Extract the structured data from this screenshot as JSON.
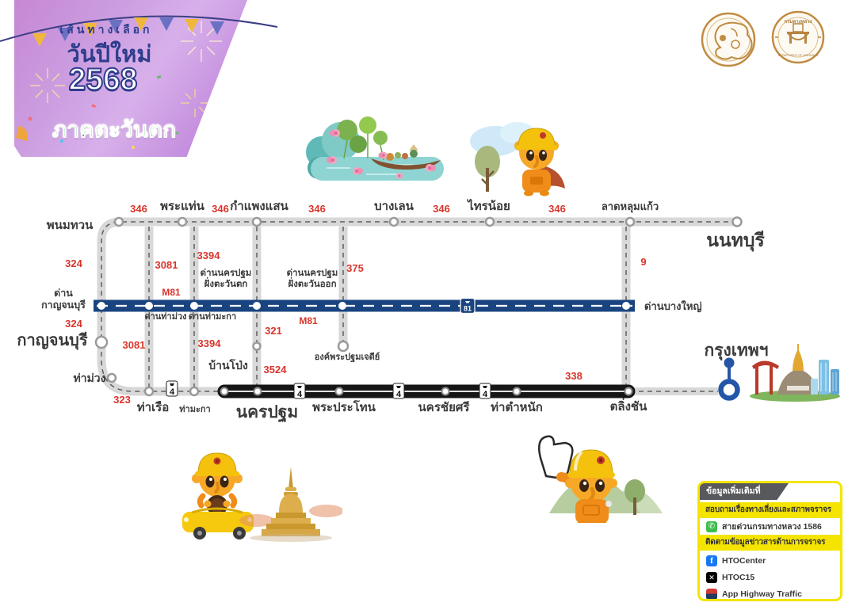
{
  "banner": {
    "line1": "เส้นทางเลือก",
    "line2": "วันปีใหม่",
    "year": "2568",
    "region": "ภาคตะวันตก"
  },
  "seals": {
    "right_top": "กรมทางหลวง",
    "right_bottom": "DEPARTMENT OF HIGHWAYS"
  },
  "map": {
    "towns": {
      "phanom_thuan": "พนมทวน",
      "phra_thaen": "พระแท่น",
      "kamphaeng_saen": "กำแพงแสน",
      "bang_len": "บางเลน",
      "sai_noi": "ไทรน้อย",
      "lat_lum_kaeo": "ลาดหลุมแก้ว",
      "nonthaburi": "นนทบุรี",
      "kanchanaburi": "กาญจนบุรี",
      "tha_muang": "ท่าม่วง",
      "tha_ruea": "ท่าเรือ",
      "tha_maka": "ท่ามะกา",
      "ban_pong": "บ้านโป่ง",
      "phra_pathom_chedi": "องค์พระปฐมเจดีย์",
      "nakhon_pathom": "นครปฐม",
      "phra_prathon": "พระประโทน",
      "nakhon_chai_si": "นครชัยศรี",
      "tha_tamnak": "ท่าตำหนัก",
      "taling_chan": "ตลิ่งชัน",
      "bangkok": "กรุงเทพฯ"
    },
    "tolls": {
      "kan_line1": "ด่าน",
      "kan_line2": "กาญจนบุรี",
      "tha_muang": "ด่านท่าม่วง",
      "tha_maka": "ด่านท่ามะกา",
      "np_line1": "ด่านนครปฐม",
      "np_west_line2": "ฝั่งตะวันตก",
      "np_east_line2": "ฝั่งตะวันออก",
      "bang_yai": "ด่านบางใหญ่"
    },
    "routes": {
      "r346": "346",
      "r324": "324",
      "r3081": "3081",
      "r3394": "3394",
      "m81": "M81",
      "r375": "375",
      "r9": "9",
      "r321": "321",
      "r3524": "3524",
      "r323": "323",
      "r338": "338",
      "shield4": "4",
      "shield81": "81"
    }
  },
  "info_box": {
    "header": "ข้อมูลเพิ่มเติมที่",
    "ask_title": "สอบถามเรื่องทางเลี่ยงและสภาพจราจร",
    "hotline": "สายด่วนกรมทางหลวง 1586",
    "follow_title": "ติดตามข้อมูลข่าวสารด้านการจราจร",
    "facebook": "HTOCenter",
    "x": "HTOC15",
    "app": "App Highway Traffic"
  },
  "icons": {
    "facebook_glyph": "f",
    "x_glyph": "✕",
    "phone_glyph": "✆"
  },
  "colors": {
    "route_red": "#d8352b",
    "motorway_blue": "#1a4480",
    "road_gray": "#d8d8d8",
    "black_road": "#161616",
    "accent_yellow": "#f5e400",
    "banner_purple": "#c990dd",
    "region_green": "#2f9e4f",
    "title_navy": "#2e3c8c"
  }
}
